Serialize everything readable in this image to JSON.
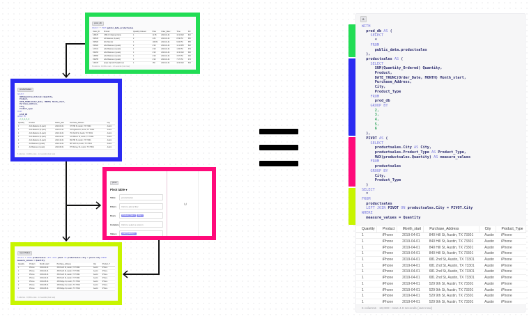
{
  "colors": {
    "green": "#22dd55",
    "blue": "#2b2bf2",
    "pink": "#ff0a7a",
    "lime": "#c8f500"
  },
  "prod_db": {
    "label": "prod_db",
    "sql": [
      {
        "t": "SELECT",
        "c": "kw"
      },
      {
        "t": " * ",
        "c": ""
      },
      {
        "t": "FROM",
        "c": "kw"
      },
      {
        "t": " public_data.productsales",
        "c": "id"
      }
    ],
    "columns": [
      "Order_ID",
      "Product",
      "Quantity Ordered",
      "Price",
      "Order_Date ↑",
      "Time",
      "Pur"
    ],
    "rows": [
      [
        "149670",
        "USB-C Charging Cable",
        "1",
        "11.95",
        "2019-01-01",
        "10:10 AM",
        "912"
      ],
      [
        "150533",
        "AA Batteries (4-pack)",
        "2",
        "3.84",
        "2019-01-01",
        "8:59 PM",
        "650"
      ],
      [
        "150506",
        "20in Monitor",
        "1",
        "109.99",
        "2019-01-01",
        "9:20 PM",
        "655"
      ],
      [
        "150600",
        "AAA Batteries (4-pack)",
        "2",
        "2.99",
        "2019-01-01",
        "11:10 PM",
        "620"
      ],
      [
        "147101",
        "AAA Batteries (4-pack)",
        "1",
        "2.99",
        "2019-01-01",
        "1:30 PM",
        "379"
      ],
      [
        "150263",
        "AAA Batteries (4-pack)",
        "1",
        "2.99",
        "2019-01-01",
        "10:23 AM",
        "682"
      ],
      [
        "145650",
        "AAA Batteries (4-pack)",
        "1",
        "2.99",
        "2019-01-01",
        "3:37 PM",
        "400"
      ],
      [
        "150255",
        "AAA Batteries (4-pack)",
        "1",
        "2.99",
        "2019-01-01",
        "7:17 PM",
        "474"
      ],
      [
        "146105",
        "Apple Airpods Headphones",
        "1",
        "150",
        "2019-01-01",
        "10:03 AM",
        "629"
      ],
      [
        "146161",
        "Lightning Charging Cable",
        "1",
        "14.95",
        "2019-01-01",
        "4:00 PM",
        "945"
      ]
    ],
    "footer": "8 columns · 10,000+ rows · 1.3 seconds (Just now)"
  },
  "productsales_box": {
    "label": "productsales",
    "code": [
      [
        {
          "t": "SELECT",
          "c": "kw"
        }
      ],
      [
        {
          "t": "  SUM(Quantity_Ordered) Quantity,",
          "c": "id"
        }
      ],
      [
        {
          "t": "  Product,",
          "c": "id"
        }
      ],
      [
        {
          "t": "  DATE_TRUNC(Order_Date, MONTH) Month_start,",
          "c": "id"
        }
      ],
      [
        {
          "t": "  Purchase_Address,",
          "c": "id"
        }
      ],
      [
        {
          "t": "  City,",
          "c": "id"
        }
      ],
      [
        {
          "t": "  Product_Type",
          "c": "id"
        }
      ],
      [
        {
          "t": "FROM",
          "c": "kw"
        }
      ],
      [
        {
          "t": "  prod_db",
          "c": "id"
        }
      ],
      [
        {
          "t": "GROUP BY",
          "c": "kw"
        }
      ],
      [
        {
          "t": "  2,3,4,5,6",
          "c": "num"
        }
      ]
    ],
    "columns": [
      "Quantity",
      "Product",
      "Month_start",
      "Purchase_Address",
      "City"
    ],
    "rows": [
      [
        "1",
        "AAA Batteries (4-pack)",
        "2019-03-01",
        "375 Hill St, Austin, TX 73301",
        "Austin"
      ],
      [
        "1",
        "AAA Batteries (4-pack)",
        "2019-07-01",
        "78 Highland St, Austin, TX 73301",
        "Austin"
      ],
      [
        "1",
        "AAA Batteries (4-pack)",
        "2019-10-01",
        "764 North St, Austin, TX 73301",
        "Austin"
      ],
      [
        "1",
        "AAA Batteries (4-pack)",
        "2019-02-01",
        "120 Wilson St, Austin, TX 73301",
        "Austin"
      ],
      [
        "1",
        "AAA Batteries (4-pack)",
        "2019-10-01",
        "990 Hill St, Austin, TX 73301",
        "Austin"
      ],
      [
        "1",
        "AA Batteries (4-pack)",
        "2019-12-01",
        "887 10th St, Austin, TX 73301",
        "Austin"
      ],
      [
        "1",
        "AA Batteries (4-pack)",
        "2019-08-01",
        "876 Dorsey St, Austin, TX 73301",
        "Austin"
      ]
    ],
    "footer": "6 columns · 10,000+ rows · 1.2 seconds (Just now)"
  },
  "pivot_box": {
    "label": "pivot",
    "title": "Pivot table ▾",
    "fields": [
      {
        "label": "Table",
        "value": "productsales",
        "chips": []
      },
      {
        "label": "Filters",
        "value": "Click to add a filter",
        "chips": []
      },
      {
        "label": "Rows",
        "value": "",
        "chips": [
          "Product_Type ×",
          "City ×"
        ]
      },
      {
        "label": "Columns",
        "value": "Click to select a column",
        "chips": []
      },
      {
        "label": "Values",
        "value": "",
        "chips": [
          "max(Quantity) ×"
        ]
      }
    ]
  },
  "report_box": {
    "label": "reportSales",
    "sql": [
      {
        "t": "SELECT",
        "c": "kw"
      },
      {
        "t": " * ",
        "c": ""
      },
      {
        "t": "FROM",
        "c": "kw"
      },
      {
        "t": " productsales ",
        "c": "id"
      },
      {
        "t": "LEFT JOIN",
        "c": "kw"
      },
      {
        "t": " pivot ",
        "c": "id"
      },
      {
        "t": "ON",
        "c": "kw"
      },
      {
        "t": " productsales.city = pivot.city ",
        "c": "id"
      },
      {
        "t": "WHERE",
        "c": "kw"
      },
      {
        "t": "\nmeasure_values = Quantity",
        "c": "id"
      }
    ],
    "columns": [
      "Quantity",
      "Product",
      "Month_start ↑",
      "Purchase_Address",
      "City",
      "Product_T"
    ],
    "rows": [
      [
        "1",
        "iPhone",
        "2019-04-01",
        "336 North St, Austin, TX 73301",
        "Austin",
        "iPhone"
      ],
      [
        "1",
        "iPhone",
        "2019-04-01",
        "336 North St, Austin, TX 73301",
        "Austin",
        "iPhone"
      ],
      [
        "1",
        "iPhone",
        "2019-04-01",
        "336 North St, Austin, TX 73301",
        "Austin",
        "iPhone"
      ],
      [
        "1",
        "iPhone",
        "2019-04-01",
        "336 North St, Austin, TX 73301",
        "Austin",
        "iPhone"
      ],
      [
        "1",
        "iPhone",
        "2019-05-01",
        "405 Ridge St, Austin, TX 73301",
        "Austin",
        "iPhone"
      ],
      [
        "1",
        "iPhone",
        "2019-05-01",
        "405 Ridge St, Austin, TX 73301",
        "Austin",
        "iPhone"
      ],
      [
        "1",
        "iPhone",
        "2019-05-01",
        "405 Ridge St, Austin, TX 73301",
        "Austin",
        "iPhone"
      ]
    ],
    "footer": "6 columns · 10,000+ rows · 1.3 seconds (Just now)"
  },
  "panel": {
    "chip": "a",
    "code": [
      [
        {
          "t": "WITH",
          "c": "kw"
        }
      ],
      [
        {
          "t": "  prod_db ",
          "c": "id"
        },
        {
          "t": "AS",
          "c": "kw"
        },
        {
          "t": " (",
          "c": "id"
        }
      ],
      [
        {
          "t": "    SELECT",
          "c": "kw"
        }
      ],
      [
        {
          "t": "      *",
          "c": "id"
        }
      ],
      [
        {
          "t": "    FROM",
          "c": "kw"
        }
      ],
      [
        {
          "t": "      public_data.productsales",
          "c": "id"
        }
      ],
      [
        {
          "t": "  ),",
          "c": "id"
        }
      ],
      [
        {
          "t": "  productsales ",
          "c": "id"
        },
        {
          "t": "AS",
          "c": "kw"
        },
        {
          "t": " (",
          "c": "id"
        }
      ],
      [
        {
          "t": "    SELECT",
          "c": "kw"
        }
      ],
      [
        {
          "t": "      SUM(Quantity_Ordered) Quantity,",
          "c": "id"
        }
      ],
      [
        {
          "t": "      Product,",
          "c": "id"
        }
      ],
      [
        {
          "t": "      DATE_TRUNC(Order_Date, MONTH) Month_start,",
          "c": "id"
        }
      ],
      [
        {
          "t": "      Purchase_Address,",
          "c": "id"
        }
      ],
      [
        {
          "t": "      City,",
          "c": "id"
        }
      ],
      [
        {
          "t": "      Product_Type",
          "c": "id"
        }
      ],
      [
        {
          "t": "    FROM",
          "c": "kw"
        }
      ],
      [
        {
          "t": "      prod_db",
          "c": "id"
        }
      ],
      [
        {
          "t": "    GROUP BY",
          "c": "kw"
        }
      ],
      [
        {
          "t": "      2,",
          "c": "num"
        }
      ],
      [
        {
          "t": "      3,",
          "c": "num"
        }
      ],
      [
        {
          "t": "      4,",
          "c": "num"
        }
      ],
      [
        {
          "t": "      5,",
          "c": "num"
        }
      ],
      [
        {
          "t": "      6",
          "c": "num"
        }
      ],
      [
        {
          "t": "  ),",
          "c": "id"
        }
      ],
      [
        {
          "t": "  PIVOT ",
          "c": "id"
        },
        {
          "t": "AS",
          "c": "kw"
        },
        {
          "t": " (",
          "c": "id"
        }
      ],
      [
        {
          "t": "    SELECT",
          "c": "kw"
        }
      ],
      [
        {
          "t": "      productsales.City ",
          "c": "id"
        },
        {
          "t": "AS",
          "c": "kw"
        },
        {
          "t": " City,",
          "c": "id"
        }
      ],
      [
        {
          "t": "      productsales.Product_Type ",
          "c": "id"
        },
        {
          "t": "AS",
          "c": "kw"
        },
        {
          "t": " Product_Type,",
          "c": "id"
        }
      ],
      [
        {
          "t": "      MAX(productsales.Quantity) ",
          "c": "id"
        },
        {
          "t": "AS",
          "c": "kw"
        },
        {
          "t": " measure_values",
          "c": "id"
        }
      ],
      [
        {
          "t": "    FROM",
          "c": "kw"
        }
      ],
      [
        {
          "t": "      productsales",
          "c": "id"
        }
      ],
      [
        {
          "t": "    GROUP BY",
          "c": "kw"
        }
      ],
      [
        {
          "t": "      City,",
          "c": "id"
        }
      ],
      [
        {
          "t": "      Product_Type",
          "c": "id"
        }
      ],
      [
        {
          "t": "  )",
          "c": "id"
        }
      ],
      [
        {
          "t": "SELECT",
          "c": "kw"
        }
      ],
      [
        {
          "t": "  *",
          "c": "id"
        }
      ],
      [
        {
          "t": "FROM",
          "c": "kw"
        }
      ],
      [
        {
          "t": "  productsales",
          "c": "id"
        }
      ],
      [
        {
          "t": "  LEFT JOIN",
          "c": "kw"
        },
        {
          "t": " PIVOT ",
          "c": "id"
        },
        {
          "t": "ON",
          "c": "kw"
        },
        {
          "t": " productsales.City = PIVOT.City",
          "c": "id"
        }
      ],
      [
        {
          "t": "WHERE",
          "c": "kw"
        }
      ],
      [
        {
          "t": "  measure_values = Quantity",
          "c": "id"
        }
      ]
    ],
    "columns": [
      "Quantity",
      "Product",
      "Month_start",
      "Purchase_Address",
      "City",
      "Product_Type"
    ],
    "rows": [
      [
        "1",
        "iPhone",
        "2019-04-01",
        "840 Hill St, Austin, TX 73301",
        "Austin",
        "iPhone"
      ],
      [
        "1",
        "iPhone",
        "2019-04-01",
        "840 Hill St, Austin, TX 73301",
        "Austin",
        "iPhone"
      ],
      [
        "1",
        "iPhone",
        "2019-04-01",
        "840 Hill St, Austin, TX 73301",
        "Austin",
        "iPhone"
      ],
      [
        "1",
        "iPhone",
        "2019-04-01",
        "840 Hill St, Austin, TX 73301",
        "Austin",
        "iPhone"
      ],
      [
        "1",
        "iPhone",
        "2019-04-01",
        "681 2nd St, Austin, TX 73301",
        "Austin",
        "iPhone"
      ],
      [
        "1",
        "iPhone",
        "2019-04-01",
        "681 2nd St, Austin, TX 73301",
        "Austin",
        "iPhone"
      ],
      [
        "1",
        "iPhone",
        "2019-04-01",
        "681 2nd St, Austin, TX 73301",
        "Austin",
        "iPhone"
      ],
      [
        "1",
        "iPhone",
        "2019-04-01",
        "681 2nd St, Austin, TX 73301",
        "Austin",
        "iPhone"
      ],
      [
        "1",
        "iPhone",
        "2019-04-01",
        "529 9th St, Austin, TX 73301",
        "Austin",
        "iPhone"
      ],
      [
        "1",
        "iPhone",
        "2019-04-01",
        "529 9th St, Austin, TX 73301",
        "Austin",
        "iPhone"
      ],
      [
        "1",
        "iPhone",
        "2019-04-01",
        "529 9th St, Austin, TX 73301",
        "Austin",
        "iPhone"
      ],
      [
        "1",
        "iPhone",
        "2019-04-01",
        "529 9th St, Austin, TX 73301",
        "Austin",
        "iPhone"
      ]
    ],
    "footer": "6 columns · 10,000+ rows    4.8 seconds (Just now)"
  }
}
